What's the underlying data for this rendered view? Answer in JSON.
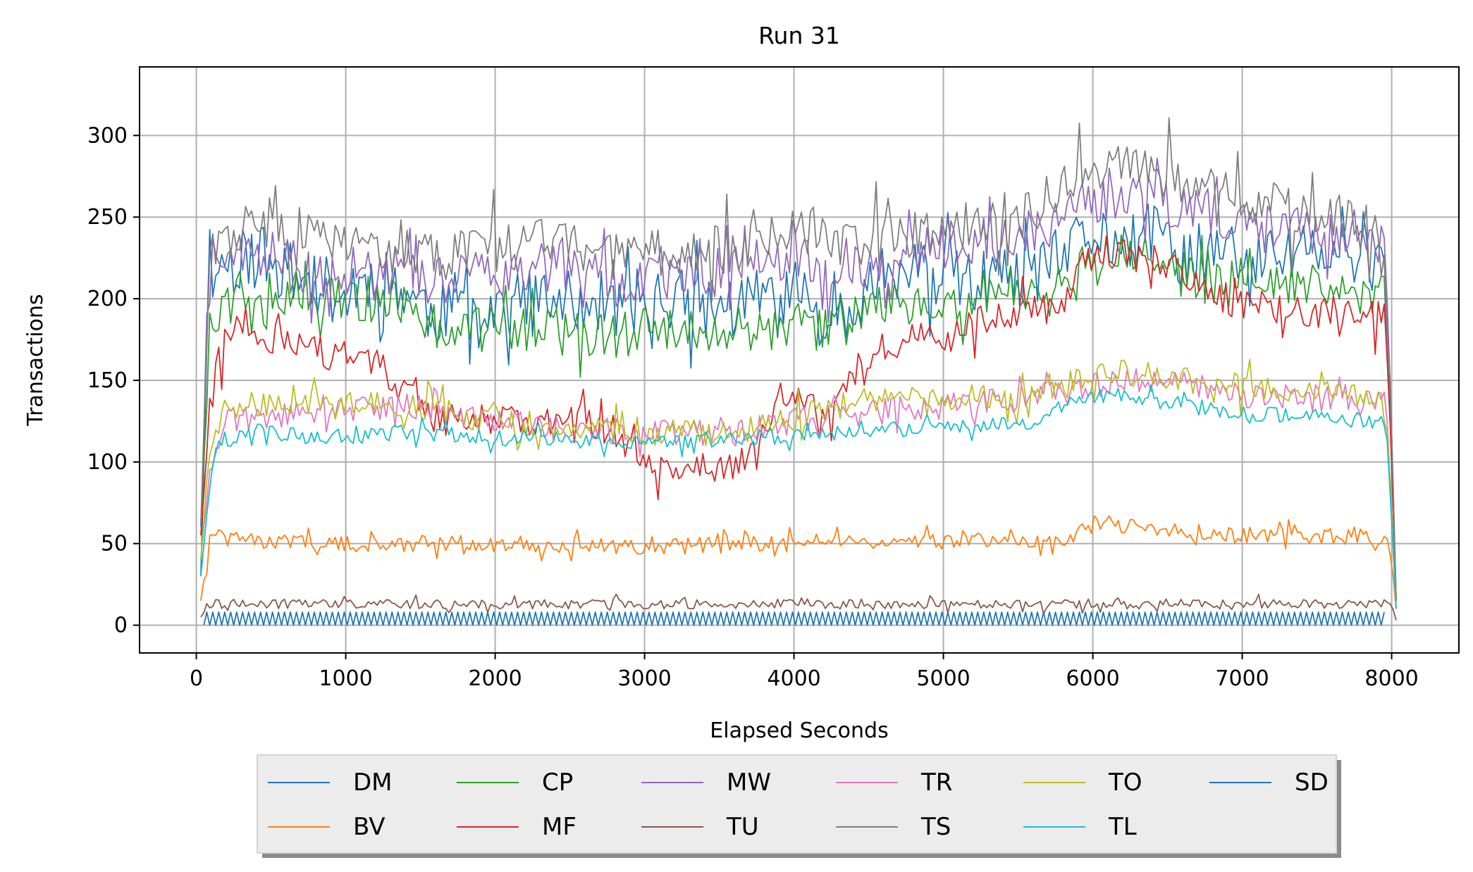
{
  "chart_data": {
    "type": "line",
    "title": "Run 31",
    "xlabel": "Elapsed Seconds",
    "ylabel": "Transactions",
    "xlim": [
      -380,
      8450
    ],
    "ylim": [
      -17,
      342
    ],
    "xticks": [
      0,
      1000,
      2000,
      3000,
      4000,
      5000,
      6000,
      7000,
      8000
    ],
    "yticks": [
      0,
      50,
      100,
      150,
      200,
      250,
      300
    ],
    "grid": true,
    "legend_position": "below",
    "legend_columns": 6,
    "sample_interval_s": 20,
    "sample_start_s": 30,
    "sample_end_s": 8030,
    "series": [
      {
        "name": "DM",
        "color": "#1f77b4",
        "points": [
          [
            30,
            30
          ],
          [
            90,
            225
          ],
          [
            200,
            220
          ],
          [
            400,
            230
          ],
          [
            600,
            215
          ],
          [
            800,
            210
          ],
          [
            1000,
            200
          ],
          [
            1200,
            215
          ],
          [
            1400,
            205
          ],
          [
            1600,
            190
          ],
          [
            1800,
            200
          ],
          [
            2000,
            195
          ],
          [
            2200,
            200
          ],
          [
            2400,
            195
          ],
          [
            2600,
            200
          ],
          [
            2800,
            195
          ],
          [
            3000,
            200
          ],
          [
            3200,
            200
          ],
          [
            3400,
            195
          ],
          [
            3600,
            195
          ],
          [
            3800,
            200
          ],
          [
            4000,
            205
          ],
          [
            4200,
            195
          ],
          [
            4400,
            200
          ],
          [
            4600,
            215
          ],
          [
            4800,
            215
          ],
          [
            5000,
            215
          ],
          [
            5200,
            210
          ],
          [
            5400,
            210
          ],
          [
            5600,
            215
          ],
          [
            5800,
            225
          ],
          [
            6000,
            240
          ],
          [
            6200,
            235
          ],
          [
            6400,
            240
          ],
          [
            6600,
            225
          ],
          [
            6800,
            225
          ],
          [
            7000,
            225
          ],
          [
            7200,
            225
          ],
          [
            7400,
            230
          ],
          [
            7600,
            225
          ],
          [
            7800,
            225
          ],
          [
            7960,
            215
          ],
          [
            8000,
            110
          ],
          [
            8030,
            15
          ]
        ],
        "noise": [
          20,
          40
        ],
        "seed": 11
      },
      {
        "name": "BV",
        "color": "#ff7f0e",
        "points": [
          [
            30,
            15
          ],
          [
            90,
            52
          ],
          [
            300,
            52
          ],
          [
            1000,
            50
          ],
          [
            2000,
            50
          ],
          [
            3000,
            48
          ],
          [
            4000,
            50
          ],
          [
            5000,
            52
          ],
          [
            5800,
            52
          ],
          [
            6000,
            62
          ],
          [
            6500,
            58
          ],
          [
            7000,
            55
          ],
          [
            7500,
            55
          ],
          [
            7960,
            52
          ],
          [
            8000,
            40
          ],
          [
            8030,
            10
          ]
        ],
        "noise": [
          5,
          10
        ],
        "seed": 22
      },
      {
        "name": "CP",
        "color": "#2ca02c",
        "points": [
          [
            30,
            60
          ],
          [
            90,
            180
          ],
          [
            300,
            205
          ],
          [
            800,
            200
          ],
          [
            1300,
            200
          ],
          [
            1600,
            185
          ],
          [
            2000,
            180
          ],
          [
            2400,
            180
          ],
          [
            2800,
            178
          ],
          [
            3200,
            180
          ],
          [
            3600,
            180
          ],
          [
            4000,
            180
          ],
          [
            4300,
            185
          ],
          [
            4600,
            195
          ],
          [
            5000,
            200
          ],
          [
            5400,
            205
          ],
          [
            5800,
            210
          ],
          [
            6000,
            225
          ],
          [
            6400,
            225
          ],
          [
            6800,
            210
          ],
          [
            7200,
            210
          ],
          [
            7600,
            205
          ],
          [
            7960,
            205
          ],
          [
            8000,
            100
          ],
          [
            8030,
            15
          ]
        ],
        "noise": [
          15,
          30
        ],
        "seed": 33
      },
      {
        "name": "MF",
        "color": "#d62728",
        "points": [
          [
            30,
            55
          ],
          [
            90,
            130
          ],
          [
            150,
            165
          ],
          [
            300,
            190
          ],
          [
            500,
            175
          ],
          [
            800,
            168
          ],
          [
            1200,
            160
          ],
          [
            1450,
            140
          ],
          [
            1600,
            125
          ],
          [
            2000,
            125
          ],
          [
            2500,
            125
          ],
          [
            2800,
            120
          ],
          [
            3000,
            100
          ],
          [
            3300,
            98
          ],
          [
            3600,
            98
          ],
          [
            3750,
            105
          ],
          [
            3900,
            140
          ],
          [
            4200,
            130
          ],
          [
            4400,
            150
          ],
          [
            4600,
            170
          ],
          [
            5000,
            180
          ],
          [
            5400,
            190
          ],
          [
            5800,
            200
          ],
          [
            6000,
            230
          ],
          [
            6400,
            225
          ],
          [
            6800,
            200
          ],
          [
            7200,
            195
          ],
          [
            7600,
            190
          ],
          [
            7960,
            190
          ],
          [
            8000,
            100
          ],
          [
            8030,
            15
          ]
        ],
        "noise": [
          10,
          25
        ],
        "seed": 44
      },
      {
        "name": "MW",
        "color": "#9467bd",
        "points": [
          [
            30,
            60
          ],
          [
            90,
            230
          ],
          [
            400,
            230
          ],
          [
            800,
            215
          ],
          [
            1200,
            220
          ],
          [
            1600,
            210
          ],
          [
            2000,
            215
          ],
          [
            2400,
            220
          ],
          [
            2800,
            210
          ],
          [
            3200,
            215
          ],
          [
            3600,
            220
          ],
          [
            4000,
            225
          ],
          [
            4400,
            215
          ],
          [
            4800,
            230
          ],
          [
            5200,
            235
          ],
          [
            5600,
            240
          ],
          [
            5900,
            255
          ],
          [
            6200,
            265
          ],
          [
            6600,
            255
          ],
          [
            7000,
            250
          ],
          [
            7400,
            240
          ],
          [
            7800,
            240
          ],
          [
            7960,
            225
          ],
          [
            8000,
            120
          ],
          [
            8030,
            15
          ]
        ],
        "noise": [
          15,
          35
        ],
        "seed": 55
      },
      {
        "name": "TU",
        "color": "#8c564b",
        "points": [
          [
            30,
            5
          ],
          [
            90,
            13
          ],
          [
            8000,
            13
          ],
          [
            8030,
            3
          ]
        ],
        "noise": [
          3,
          6
        ],
        "seed": 66
      },
      {
        "name": "TR",
        "color": "#e377c2",
        "points": [
          [
            30,
            40
          ],
          [
            90,
            100
          ],
          [
            200,
            125
          ],
          [
            800,
            130
          ],
          [
            1400,
            135
          ],
          [
            1800,
            128
          ],
          [
            2400,
            120
          ],
          [
            3000,
            118
          ],
          [
            3600,
            118
          ],
          [
            4000,
            125
          ],
          [
            4500,
            130
          ],
          [
            5000,
            135
          ],
          [
            5600,
            138
          ],
          [
            5900,
            145
          ],
          [
            6200,
            150
          ],
          [
            6600,
            148
          ],
          [
            7000,
            140
          ],
          [
            7400,
            140
          ],
          [
            7960,
            135
          ],
          [
            8000,
            70
          ],
          [
            8030,
            10
          ]
        ],
        "noise": [
          8,
          15
        ],
        "seed": 77
      },
      {
        "name": "TS",
        "color": "#7f7f7f",
        "points": [
          [
            30,
            60
          ],
          [
            90,
            235
          ],
          [
            400,
            245
          ],
          [
            800,
            240
          ],
          [
            1200,
            230
          ],
          [
            1600,
            225
          ],
          [
            2000,
            230
          ],
          [
            2400,
            235
          ],
          [
            2800,
            225
          ],
          [
            3200,
            230
          ],
          [
            3600,
            230
          ],
          [
            4000,
            240
          ],
          [
            4400,
            230
          ],
          [
            4800,
            240
          ],
          [
            5200,
            245
          ],
          [
            5600,
            255
          ],
          [
            5900,
            280
          ],
          [
            6200,
            285
          ],
          [
            6600,
            270
          ],
          [
            7000,
            260
          ],
          [
            7400,
            255
          ],
          [
            7800,
            250
          ],
          [
            7960,
            240
          ],
          [
            8000,
            120
          ],
          [
            8030,
            15
          ]
        ],
        "noise": [
          15,
          40
        ],
        "seed": 88
      },
      {
        "name": "TO",
        "color": "#bcbd22",
        "points": [
          [
            30,
            40
          ],
          [
            90,
            110
          ],
          [
            200,
            135
          ],
          [
            800,
            135
          ],
          [
            1400,
            135
          ],
          [
            1800,
            128
          ],
          [
            2400,
            122
          ],
          [
            3000,
            118
          ],
          [
            3600,
            118
          ],
          [
            4000,
            128
          ],
          [
            4500,
            138
          ],
          [
            5000,
            140
          ],
          [
            5600,
            140
          ],
          [
            5900,
            150
          ],
          [
            6200,
            155
          ],
          [
            6600,
            150
          ],
          [
            7000,
            145
          ],
          [
            7400,
            145
          ],
          [
            7960,
            140
          ],
          [
            8000,
            70
          ],
          [
            8030,
            10
          ]
        ],
        "noise": [
          8,
          18
        ],
        "seed": 99
      },
      {
        "name": "TL",
        "color": "#17becf",
        "points": [
          [
            30,
            30
          ],
          [
            90,
            85
          ],
          [
            150,
            112
          ],
          [
            400,
            120
          ],
          [
            800,
            115
          ],
          [
            1400,
            118
          ],
          [
            2000,
            115
          ],
          [
            2600,
            113
          ],
          [
            3200,
            112
          ],
          [
            3800,
            115
          ],
          [
            4400,
            118
          ],
          [
            5000,
            122
          ],
          [
            5600,
            125
          ],
          [
            5900,
            140
          ],
          [
            6200,
            142
          ],
          [
            6600,
            135
          ],
          [
            7000,
            130
          ],
          [
            7400,
            128
          ],
          [
            7960,
            125
          ],
          [
            8000,
            65
          ],
          [
            8030,
            10
          ]
        ],
        "noise": [
          5,
          10
        ],
        "seed": 111
      },
      {
        "name": "SD",
        "color": "#1f77b4",
        "pattern": "zigzag",
        "x_start": 50,
        "x_end": 7960,
        "period": 40,
        "low": 0,
        "high": 8
      }
    ]
  }
}
